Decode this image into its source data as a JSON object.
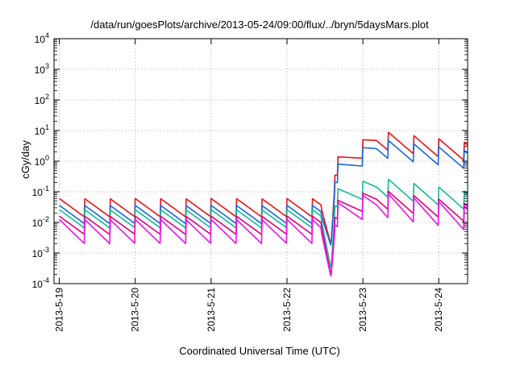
{
  "chart_data": {
    "type": "line",
    "title": "/data/run/goesPlots/archive/2013-05-24/09:00/flux/../bryn/5daysMars.plot",
    "xlabel": "Coordinated Universal Time (UTC)",
    "ylabel": "cGy/day",
    "yscale": "log",
    "ylim": [
      0.0001,
      10000
    ],
    "y_ticks": [
      {
        "exp": "-4"
      },
      {
        "exp": "-3"
      },
      {
        "exp": "-2"
      },
      {
        "exp": "-1"
      },
      {
        "exp": "0"
      },
      {
        "exp": "1"
      },
      {
        "exp": "2"
      },
      {
        "exp": "3"
      },
      {
        "exp": "4"
      }
    ],
    "y_tick_base": "10",
    "x_ticks": [
      "2013-5-19",
      "2013-5-20",
      "2013-5-21",
      "2013-5-22",
      "2013-5-23",
      "2013-5-24"
    ],
    "xlim_days": [
      -0.07,
      5.38
    ],
    "grid": true,
    "legend": "none",
    "series": [
      {
        "color": "#ee1111",
        "base": 0.03,
        "amp": 2.0,
        "flare": 0.6,
        "flare_peak": 5.0,
        "decay": 0.75,
        "dip": 0.0018
      },
      {
        "color": "#1a66dd",
        "base": 0.018,
        "amp": 2.0,
        "flare": 0.35,
        "flare_peak": 2.7,
        "decay": 0.75,
        "dip": 0.0017
      },
      {
        "color": "#11bb99",
        "base": 0.013,
        "amp": 2.0,
        "flare": 0.06,
        "flare_peak": 0.15,
        "decay": 0.9,
        "dip": 0.0003
      },
      {
        "color": "#dd0077",
        "base": 0.008,
        "amp": 2.0,
        "flare": 0.025,
        "flare_peak": 0.06,
        "decay": 0.9,
        "dip": 0.00018
      },
      {
        "color": "#ee11ee",
        "base": 0.005,
        "amp": 2.5,
        "flare": 0.017,
        "flare_peak": 0.04,
        "decay": 0.9,
        "dip": 0.00016
      }
    ]
  }
}
